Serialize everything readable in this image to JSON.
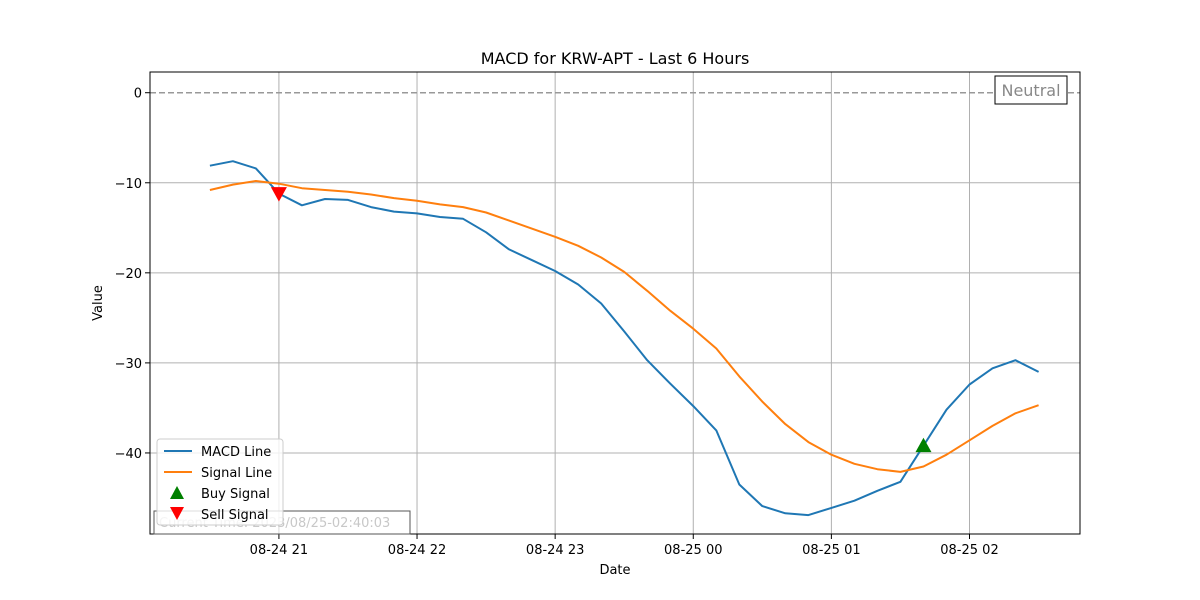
{
  "chart_data": {
    "type": "line",
    "title": "MACD for KRW-APT - Last 6 Hours",
    "xlabel": "Date",
    "ylabel": "Value",
    "x_ticks": [
      "08-24 21",
      "08-24 22",
      "08-24 23",
      "08-25 00",
      "08-25 01",
      "08-25 02"
    ],
    "y_ticks": [
      "0",
      "−10",
      "−20",
      "−30",
      "−40"
    ],
    "ylim": [
      -49,
      2.3
    ],
    "xlim": [
      "2023-08-24 20:04",
      "2023-08-25 02:48"
    ],
    "grid": true,
    "legend_position": "lower-left",
    "zero_line": {
      "y": 0,
      "color": "#999999",
      "style": "dashed"
    },
    "series": [
      {
        "name": "MACD Line",
        "color": "#1f77b4",
        "x": [
          "2023-08-24 20:30",
          "2023-08-24 20:40",
          "2023-08-24 20:50",
          "2023-08-24 21:00",
          "2023-08-24 21:10",
          "2023-08-24 21:20",
          "2023-08-24 21:30",
          "2023-08-24 21:40",
          "2023-08-24 21:50",
          "2023-08-24 22:00",
          "2023-08-24 22:10",
          "2023-08-24 22:20",
          "2023-08-24 22:30",
          "2023-08-24 22:40",
          "2023-08-24 22:50",
          "2023-08-24 23:00",
          "2023-08-24 23:10",
          "2023-08-24 23:20",
          "2023-08-24 23:30",
          "2023-08-24 23:40",
          "2023-08-24 23:50",
          "2023-08-25 00:00",
          "2023-08-25 00:10",
          "2023-08-25 00:20",
          "2023-08-25 00:30",
          "2023-08-25 00:40",
          "2023-08-25 00:50",
          "2023-08-25 01:00",
          "2023-08-25 01:10",
          "2023-08-25 01:20",
          "2023-08-25 01:30",
          "2023-08-25 01:40",
          "2023-08-25 01:50",
          "2023-08-25 02:00",
          "2023-08-25 02:10",
          "2023-08-25 02:20",
          "2023-08-25 02:30"
        ],
        "values": [
          -8.1,
          -7.6,
          -8.4,
          -11.2,
          -12.5,
          -11.8,
          -11.9,
          -12.7,
          -13.2,
          -13.4,
          -13.8,
          -14.0,
          -15.5,
          -17.4,
          -18.6,
          -19.8,
          -21.3,
          -23.4,
          -26.5,
          -29.7,
          -32.3,
          -34.8,
          -37.5,
          -43.5,
          -45.9,
          -46.7,
          -46.9,
          -46.1,
          -45.3,
          -44.2,
          -43.2,
          -39.2,
          -35.2,
          -32.4,
          -30.6,
          -29.7,
          -31.0
        ]
      },
      {
        "name": "Signal Line",
        "color": "#ff7f0e",
        "x": [
          "2023-08-24 20:30",
          "2023-08-24 20:40",
          "2023-08-24 20:50",
          "2023-08-24 21:00",
          "2023-08-24 21:10",
          "2023-08-24 21:20",
          "2023-08-24 21:30",
          "2023-08-24 21:40",
          "2023-08-24 21:50",
          "2023-08-24 22:00",
          "2023-08-24 22:10",
          "2023-08-24 22:20",
          "2023-08-24 22:30",
          "2023-08-24 22:40",
          "2023-08-24 22:50",
          "2023-08-24 23:00",
          "2023-08-24 23:10",
          "2023-08-24 23:20",
          "2023-08-24 23:30",
          "2023-08-24 23:40",
          "2023-08-24 23:50",
          "2023-08-25 00:00",
          "2023-08-25 00:10",
          "2023-08-25 00:20",
          "2023-08-25 00:30",
          "2023-08-25 00:40",
          "2023-08-25 00:50",
          "2023-08-25 01:00",
          "2023-08-25 01:10",
          "2023-08-25 01:20",
          "2023-08-25 01:30",
          "2023-08-25 01:40",
          "2023-08-25 01:50",
          "2023-08-25 02:00",
          "2023-08-25 02:10",
          "2023-08-25 02:20",
          "2023-08-25 02:30"
        ],
        "values": [
          -10.8,
          -10.2,
          -9.8,
          -10.1,
          -10.6,
          -10.8,
          -11.0,
          -11.3,
          -11.7,
          -12.0,
          -12.4,
          -12.7,
          -13.3,
          -14.2,
          -15.1,
          -16.0,
          -17.0,
          -18.3,
          -19.9,
          -22.0,
          -24.2,
          -26.2,
          -28.4,
          -31.5,
          -34.3,
          -36.8,
          -38.8,
          -40.2,
          -41.2,
          -41.8,
          -42.1,
          -41.5,
          -40.2,
          -38.6,
          -37.0,
          -35.6,
          -34.7
        ]
      }
    ],
    "markers": [
      {
        "name": "Buy Signal",
        "shape": "triangle-up",
        "color": "#008000",
        "x": "2023-08-25 01:40",
        "y": -39.2
      },
      {
        "name": "Sell Signal",
        "shape": "triangle-down",
        "color": "#ff0000",
        "x": "2023-08-24 21:00",
        "y": -11.2
      }
    ],
    "annotations": {
      "state_label": "Neutral",
      "current_time": "Current Time: 2023/08/25-02:40:03"
    }
  }
}
